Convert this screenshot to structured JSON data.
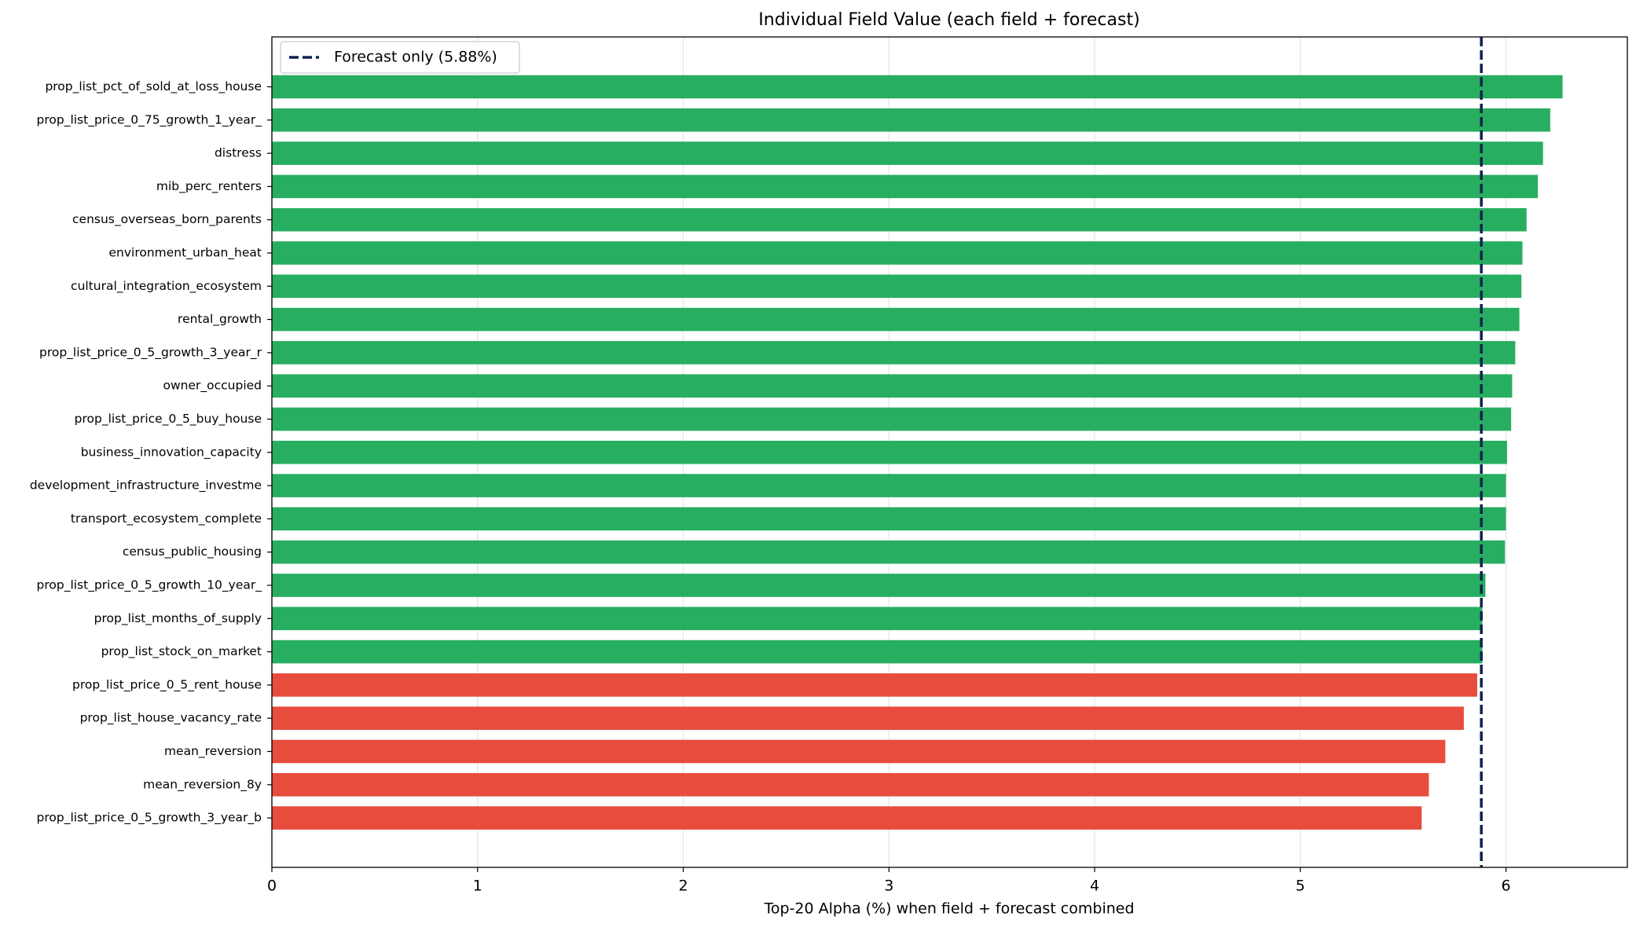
{
  "chart_data": {
    "type": "bar",
    "orientation": "horizontal",
    "title": "Individual Field Value (each field + forecast)",
    "x_label": "Top-20 Alpha (%) when field + forecast combined",
    "categories": [
      "prop_list_pct_of_sold_at_loss_house",
      "prop_list_price_0_75_growth_1_year_",
      "distress",
      "mib_perc_renters",
      "census_overseas_born_parents",
      "environment_urban_heat",
      "cultural_integration_ecosystem",
      "rental_growth",
      "prop_list_price_0_5_growth_3_year_r",
      "owner_occupied",
      "prop_list_price_0_5_buy_house",
      "business_innovation_capacity",
      "development_infrastructure_investme",
      "transport_ecosystem_complete",
      "census_public_housing",
      "prop_list_price_0_5_growth_10_year_",
      "prop_list_months_of_supply",
      "prop_list_stock_on_market",
      "prop_list_price_0_5_rent_house",
      "prop_list_house_vacancy_rate",
      "mean_reversion",
      "mean_reversion_8y",
      "prop_list_price_0_5_growth_3_year_b"
    ],
    "values": [
      6.275,
      6.215,
      6.18,
      6.155,
      6.1,
      6.08,
      6.075,
      6.065,
      6.045,
      6.03,
      6.025,
      6.005,
      6.0,
      6.0,
      5.995,
      5.9,
      5.885,
      5.885,
      5.86,
      5.795,
      5.705,
      5.625,
      5.59
    ],
    "colors": [
      "#27ae60",
      "#27ae60",
      "#27ae60",
      "#27ae60",
      "#27ae60",
      "#27ae60",
      "#27ae60",
      "#27ae60",
      "#27ae60",
      "#27ae60",
      "#27ae60",
      "#27ae60",
      "#27ae60",
      "#27ae60",
      "#27ae60",
      "#27ae60",
      "#27ae60",
      "#27ae60",
      "#e74c3c",
      "#e74c3c",
      "#e74c3c",
      "#e74c3c",
      "#e74c3c"
    ],
    "reference_line": {
      "name": "Forecast only (5.88%)",
      "value": 5.88,
      "color": "#0d2350"
    },
    "xlim": [
      0,
      6.59
    ],
    "xticks": [
      0,
      1,
      2,
      3,
      4,
      5,
      6
    ],
    "grid": true,
    "legend": "upper left"
  }
}
